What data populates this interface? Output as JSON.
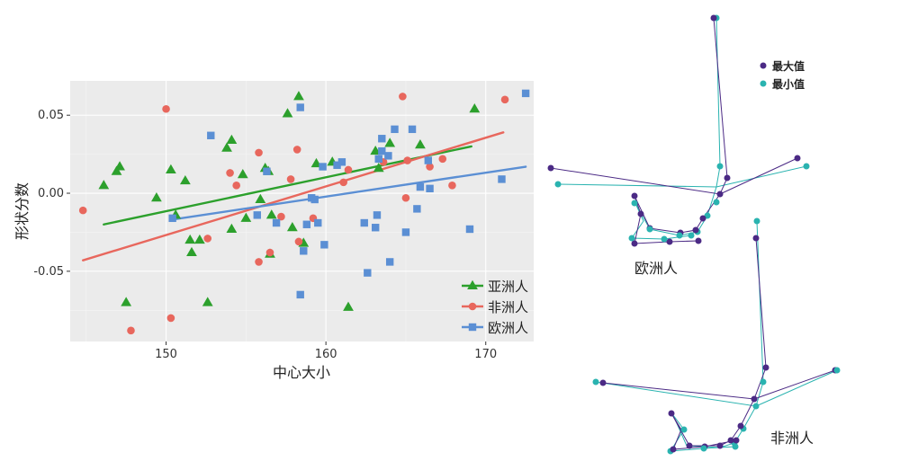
{
  "chart_data": [
    {
      "type": "scatter",
      "xlabel": "中心大小",
      "ylabel": "形状分数",
      "xlim": [
        144,
        173
      ],
      "ylim": [
        -0.095,
        0.072
      ],
      "x_ticks": [
        "150",
        "160",
        "170"
      ],
      "y_ticks": [
        "0.05",
        "0.00",
        "-0.05"
      ],
      "grid": true,
      "legend_position": "bottom-right",
      "series": [
        {
          "name": "亚洲人",
          "color": "#2ca02c",
          "marker": "triangle",
          "fit": [
            [
              146.1,
              -0.02
            ],
            [
              169.1,
              0.03
            ]
          ],
          "points": [
            [
              146.1,
              0.005
            ],
            [
              146.9,
              0.014
            ],
            [
              147.1,
              0.017
            ],
            [
              147.5,
              -0.07
            ],
            [
              149.4,
              -0.003
            ],
            [
              150.3,
              0.015
            ],
            [
              150.6,
              -0.014
            ],
            [
              151.2,
              0.008
            ],
            [
              151.5,
              -0.03
            ],
            [
              151.6,
              -0.038
            ],
            [
              152.1,
              -0.03
            ],
            [
              152.6,
              -0.07
            ],
            [
              153.8,
              0.029
            ],
            [
              154.1,
              0.034
            ],
            [
              154.1,
              -0.023
            ],
            [
              154.8,
              0.012
            ],
            [
              155.0,
              -0.016
            ],
            [
              155.9,
              -0.004
            ],
            [
              156.2,
              0.016
            ],
            [
              156.4,
              0.014
            ],
            [
              156.5,
              -0.039
            ],
            [
              156.6,
              -0.014
            ],
            [
              157.6,
              0.051
            ],
            [
              157.9,
              -0.022
            ],
            [
              158.3,
              0.062
            ],
            [
              158.6,
              -0.032
            ],
            [
              159.4,
              0.019
            ],
            [
              160.4,
              0.02
            ],
            [
              161.4,
              -0.073
            ],
            [
              163.1,
              0.027
            ],
            [
              163.3,
              0.016
            ],
            [
              164.0,
              0.032
            ],
            [
              165.9,
              0.031
            ],
            [
              169.3,
              0.054
            ]
          ]
        },
        {
          "name": "非洲人",
          "color": "#e8675d",
          "marker": "circle",
          "fit": [
            [
              144.8,
              -0.043
            ],
            [
              171.1,
              0.039
            ]
          ],
          "points": [
            [
              144.8,
              -0.011
            ],
            [
              147.8,
              -0.088
            ],
            [
              150.0,
              0.054
            ],
            [
              150.3,
              -0.08
            ],
            [
              152.6,
              -0.029
            ],
            [
              154.0,
              0.013
            ],
            [
              154.4,
              0.005
            ],
            [
              155.8,
              0.026
            ],
            [
              155.8,
              -0.044
            ],
            [
              156.5,
              -0.038
            ],
            [
              157.2,
              -0.015
            ],
            [
              157.8,
              0.009
            ],
            [
              158.2,
              0.028
            ],
            [
              158.3,
              -0.031
            ],
            [
              159.2,
              -0.016
            ],
            [
              161.1,
              0.007
            ],
            [
              161.4,
              0.015
            ],
            [
              163.6,
              0.02
            ],
            [
              164.8,
              0.062
            ],
            [
              165.0,
              -0.003
            ],
            [
              165.1,
              0.021
            ],
            [
              166.5,
              0.017
            ],
            [
              167.3,
              0.022
            ],
            [
              167.9,
              0.005
            ],
            [
              171.2,
              0.06
            ]
          ]
        },
        {
          "name": "欧洲人",
          "color": "#5b8fd4",
          "marker": "square",
          "fit": [
            [
              150.3,
              -0.017
            ],
            [
              172.5,
              0.017
            ]
          ],
          "points": [
            [
              150.4,
              -0.016
            ],
            [
              152.8,
              0.037
            ],
            [
              155.7,
              -0.014
            ],
            [
              156.3,
              0.014
            ],
            [
              156.9,
              -0.019
            ],
            [
              158.4,
              0.055
            ],
            [
              158.4,
              -0.065
            ],
            [
              158.6,
              -0.037
            ],
            [
              158.8,
              -0.02
            ],
            [
              159.1,
              -0.003
            ],
            [
              159.3,
              -0.004
            ],
            [
              159.5,
              -0.019
            ],
            [
              159.8,
              0.017
            ],
            [
              159.9,
              -0.033
            ],
            [
              160.7,
              0.018
            ],
            [
              161.0,
              0.02
            ],
            [
              162.4,
              -0.019
            ],
            [
              162.6,
              -0.051
            ],
            [
              163.1,
              -0.022
            ],
            [
              163.2,
              -0.014
            ],
            [
              163.3,
              0.022
            ],
            [
              163.5,
              0.027
            ],
            [
              163.5,
              0.035
            ],
            [
              163.9,
              0.024
            ],
            [
              164.0,
              -0.044
            ],
            [
              164.3,
              0.041
            ],
            [
              165.0,
              -0.025
            ],
            [
              165.4,
              0.041
            ],
            [
              165.7,
              -0.01
            ],
            [
              165.9,
              0.004
            ],
            [
              166.4,
              0.021
            ],
            [
              166.5,
              0.003
            ],
            [
              169.0,
              -0.023
            ],
            [
              171.0,
              0.009
            ],
            [
              172.5,
              0.064
            ]
          ]
        }
      ]
    },
    {
      "type": "diagram",
      "legend": [
        {
          "name": "最大值",
          "color": "#4b2a85"
        },
        {
          "name": "最小值",
          "color": "#2ab3b0"
        }
      ],
      "shape_labels": [
        "欧洲人",
        "非洲人"
      ]
    }
  ]
}
